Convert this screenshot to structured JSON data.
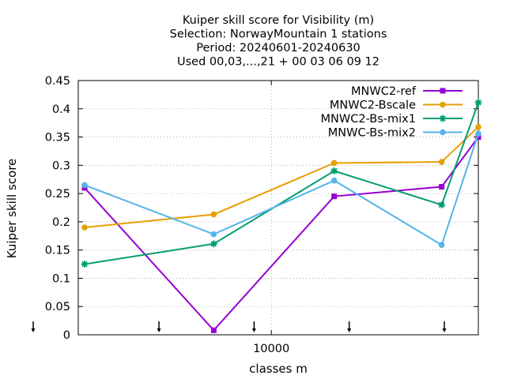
{
  "chart_data": {
    "type": "line",
    "title": [
      "Kuiper skill score  for Visibility (m)",
      "Selection: NorwayMountain      1 stations",
      "Period: 20240601-20240630",
      "Used 00,03,...,21 + 00 03 06 09 12"
    ],
    "xlabel": "classes m",
    "ylabel": "Kuiper skill score",
    "x_scale": "log",
    "xlim": [
      2880,
      38000
    ],
    "ylim": [
      0,
      0.45
    ],
    "y_ticks": [
      0,
      0.05,
      0.1,
      0.15,
      0.2,
      0.25,
      0.3,
      0.35,
      0.4,
      0.45
    ],
    "y_tick_labels": [
      "0",
      "0.05",
      "0.1",
      "0.15",
      "0.2",
      "0.25",
      "0.3",
      "0.35",
      "0.4",
      "0.45"
    ],
    "x_tick_labels": [
      {
        "x": 10000,
        "label": "10000"
      }
    ],
    "x_arrow_marks": [
      2000,
      5000,
      10000,
      20000,
      40000
    ],
    "grid": true,
    "legend_position": "top-right",
    "x": [
      3000,
      6900,
      15000,
      30000,
      38000
    ],
    "series": [
      {
        "name": "MNWC2-ref",
        "color": "#9400d3",
        "marker": "square",
        "values": [
          0.26,
          0.008,
          0.245,
          0.262,
          0.35
        ]
      },
      {
        "name": "MNWC2-Bscale",
        "color": "#e69f00",
        "marker": "circle",
        "values": [
          0.19,
          0.213,
          0.304,
          0.306,
          0.368
        ]
      },
      {
        "name": "MNWC2-Bs-mix1",
        "color": "#009e73",
        "marker": "star",
        "values": [
          0.125,
          0.161,
          0.29,
          0.23,
          0.411
        ]
      },
      {
        "name": "MNWC-Bs-mix2",
        "color": "#56b4e9",
        "marker": "circle",
        "values": [
          0.265,
          0.178,
          0.273,
          0.159,
          0.356
        ]
      }
    ]
  }
}
